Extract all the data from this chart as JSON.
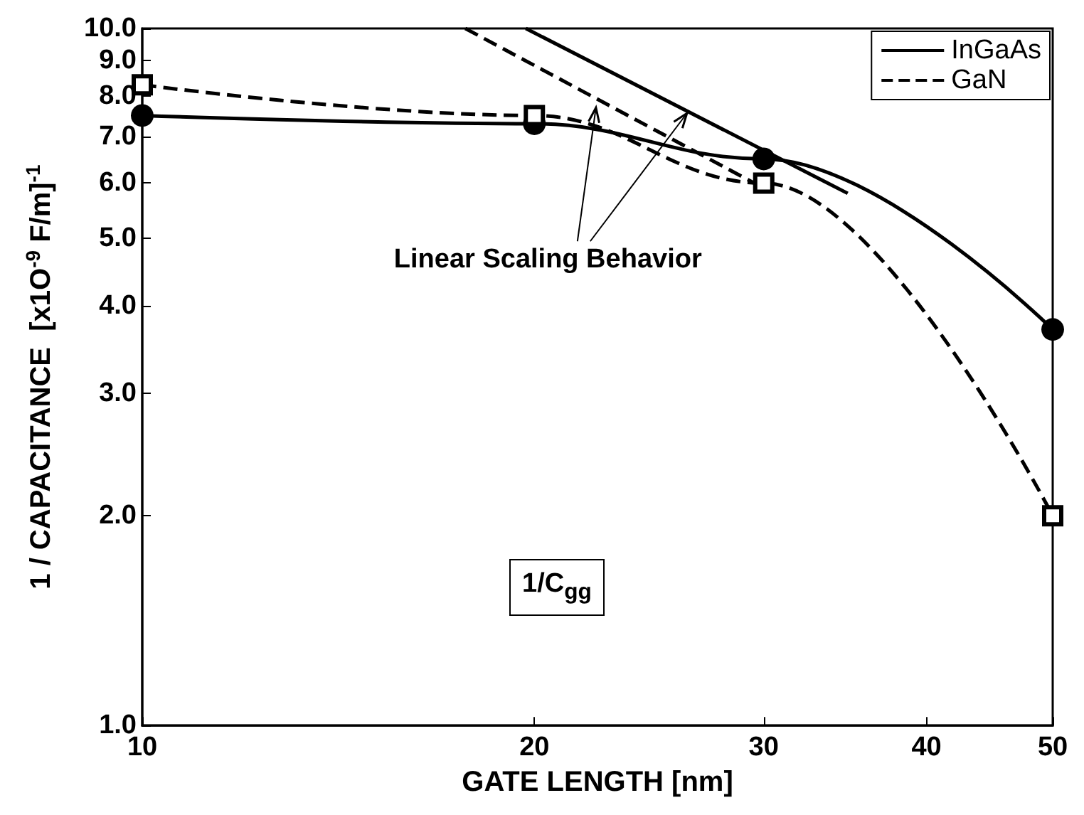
{
  "chart_data": {
    "type": "line",
    "xlabel": "GATE LENGTH [nm]",
    "ylabel": "1 / CAPACITANCE  [x1O$^{-9}$ F/m]$^{-1}$",
    "log": "xy",
    "xlim": [
      10,
      50
    ],
    "xticks": [
      10,
      20,
      30,
      40,
      50
    ],
    "ylim": [
      1,
      10
    ],
    "yticks": [
      {
        "value": 1,
        "label": "1.0"
      },
      {
        "value": 2,
        "label": "2.0"
      },
      {
        "value": 3,
        "label": "3.0"
      },
      {
        "value": 4,
        "label": "4.0"
      },
      {
        "value": 5,
        "label": "5.0"
      },
      {
        "value": 6,
        "label": "6.0"
      },
      {
        "value": 7,
        "label": "7.0"
      },
      {
        "value": 8,
        "label": "8.0"
      },
      {
        "value": 9,
        "label": "9.0"
      },
      {
        "value": 10,
        "label": "10.0"
      }
    ],
    "grid": false,
    "legend": "top right",
    "series": [
      {
        "name": "InGaAs",
        "color": "#000000",
        "x": [
          10,
          20,
          30,
          50
        ],
        "values": [
          7.5,
          7.3,
          6.5,
          3.7
        ],
        "marker": "circle",
        "line_style": "solid"
      },
      {
        "name": "GaN",
        "color": "#000000",
        "x": [
          10,
          20,
          30,
          50
        ],
        "values": [
          8.3,
          7.5,
          6.0,
          2.0
        ],
        "marker": "square",
        "line_style": "dashed"
      },
      {
        "color": "#000000",
        "x": [
          19.7,
          34.8
        ],
        "values": [
          10,
          5.8
        ],
        "marker": "none",
        "line_style": "solid"
      },
      {
        "color": "#000000",
        "x": [
          17.7,
          30
        ],
        "values": [
          10,
          5.9
        ],
        "marker": "none",
        "line_style": "dashed"
      }
    ],
    "annotations": [
      {
        "text": "Linear Scaling Behavior",
        "x": 22.3,
        "y": 7.7
      },
      "1/C$_{gg}$"
    ]
  }
}
